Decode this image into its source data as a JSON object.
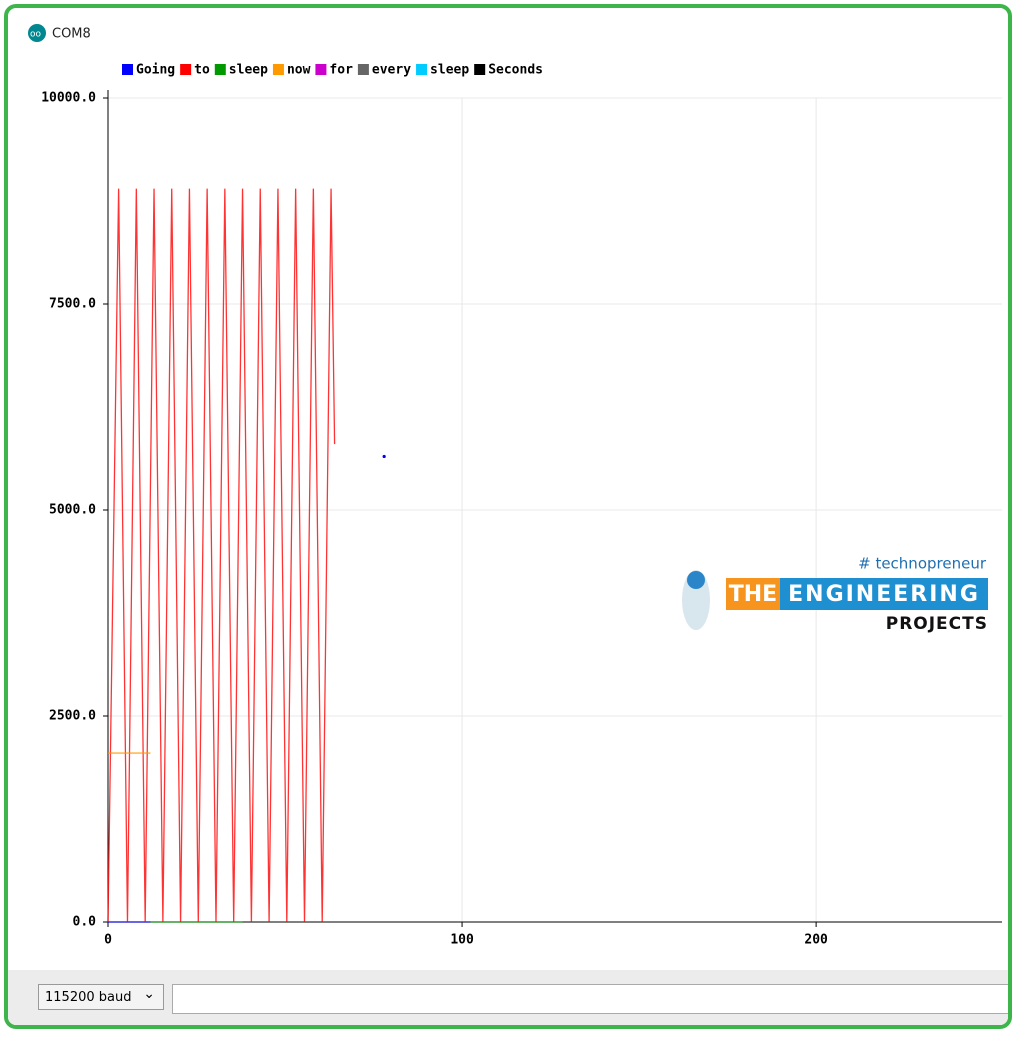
{
  "window": {
    "title": "COM8"
  },
  "chart_data": {
    "type": "line",
    "series": [
      {
        "name": "Going",
        "color": "#0000ff",
        "x": [
          0,
          12,
          13,
          78
        ],
        "values": [
          0,
          0,
          null,
          5650
        ]
      },
      {
        "name": "to",
        "color": "#ff0000",
        "x": [
          0,
          3,
          5.5,
          8,
          10.5,
          13,
          15.5,
          18,
          20.5,
          23,
          25.5,
          28,
          30.5,
          33,
          35.5,
          38,
          40.5,
          43,
          45.5,
          48,
          50.5,
          53,
          55.5,
          58,
          60.5,
          63,
          64
        ],
        "values": [
          0,
          8900,
          0,
          8900,
          0,
          8900,
          0,
          8900,
          0,
          8900,
          0,
          8900,
          0,
          8900,
          0,
          8900,
          0,
          8900,
          0,
          8900,
          0,
          8900,
          0,
          8900,
          0,
          8900,
          5800
        ]
      },
      {
        "name": "sleep",
        "color": "#009900",
        "x": [
          12,
          38
        ],
        "values": [
          0,
          0
        ]
      },
      {
        "name": "now",
        "color": "#ff9900",
        "x": [
          0,
          12
        ],
        "values": [
          2050,
          2050
        ]
      },
      {
        "name": "for",
        "color": "#cc00cc",
        "x": [],
        "values": []
      },
      {
        "name": "every",
        "color": "#666666",
        "x": [],
        "values": []
      },
      {
        "name": "sleep",
        "color": "#00ccff",
        "x": [],
        "values": []
      },
      {
        "name": "Seconds",
        "color": "#000000",
        "x": [],
        "values": []
      }
    ],
    "xlim": [
      0,
      252.5
    ],
    "xticks": [
      0,
      100,
      200
    ],
    "ylim": [
      0,
      10000
    ],
    "yticks": [
      {
        "value": 0,
        "label": "0.0"
      },
      {
        "value": 2500,
        "label": "2500.0"
      },
      {
        "value": 5000,
        "label": "5000.0"
      },
      {
        "value": 7500,
        "label": "7500.0"
      },
      {
        "value": 10000,
        "label": "10000.0"
      }
    ],
    "grid": true
  },
  "watermark": {
    "tag": "# technopreneur",
    "word1": "THE",
    "word2": "ENGINEERING",
    "word3": "PROJECTS"
  },
  "controls": {
    "baud": "115200 baud"
  }
}
